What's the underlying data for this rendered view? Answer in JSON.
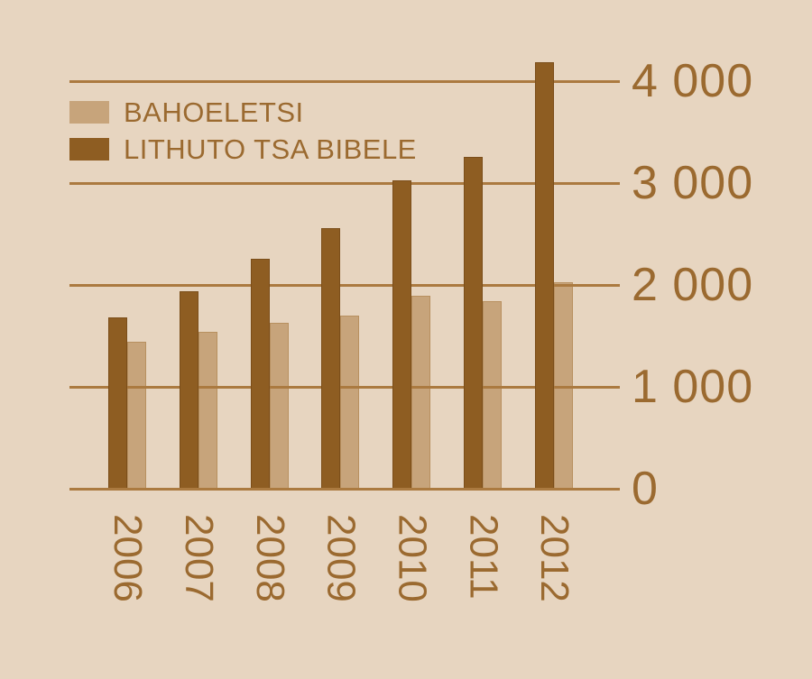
{
  "chart_data": {
    "type": "bar",
    "title": "",
    "xlabel": "",
    "ylabel": "",
    "categories": [
      "2006",
      "2007",
      "2008",
      "2009",
      "2010",
      "2011",
      "2012"
    ],
    "series": [
      {
        "name": "BAHOELETSI",
        "color": "#c7a47b",
        "border_color": "#b8905f",
        "values": [
          1440,
          1540,
          1630,
          1700,
          1890,
          1840,
          2030
        ]
      },
      {
        "name": "LITHUTO TSA BIBELE",
        "color": "#8e5d22",
        "border_color": "#7b4e1a",
        "values": [
          1680,
          1940,
          2260,
          2560,
          3030,
          3260,
          4190
        ]
      }
    ],
    "ylim": [
      0,
      4200
    ],
    "yticks": [
      {
        "value": 0,
        "label": "0"
      },
      {
        "value": 1000,
        "label": "1 000"
      },
      {
        "value": 2000,
        "label": "2 000"
      },
      {
        "value": 3000,
        "label": "3 000"
      },
      {
        "value": 4000,
        "label": "4 000"
      }
    ],
    "grid": "horizontal",
    "legend_position": "top-left"
  },
  "colors": {
    "background": "#e7d5c0",
    "gridline": "#ab7a40",
    "text": "#9b6a30"
  }
}
